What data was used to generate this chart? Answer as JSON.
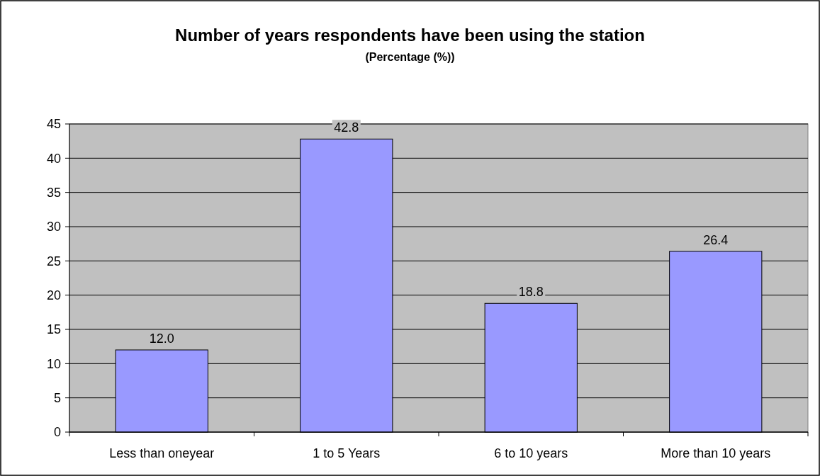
{
  "chart_data": {
    "type": "bar",
    "title": "Number of years respondents have been using the station",
    "subtitle": "(Percentage (%))",
    "categories": [
      "Less than oneyear",
      "1 to 5 Years",
      "6 to 10 years",
      "More than 10 years"
    ],
    "values": [
      12.0,
      42.8,
      18.8,
      26.4
    ],
    "value_labels": [
      "12.0",
      "42.8",
      "18.8",
      "26.4"
    ],
    "color": "#9999ff",
    "ylim": [
      0,
      45
    ],
    "yticks": [
      0,
      5,
      10,
      15,
      20,
      25,
      30,
      35,
      40,
      45
    ],
    "grid": "y"
  }
}
